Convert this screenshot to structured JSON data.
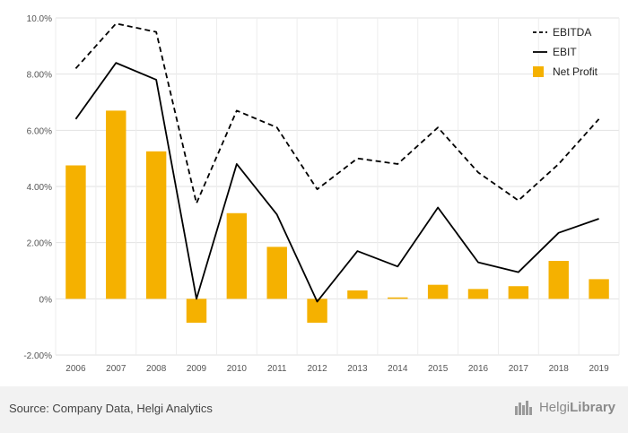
{
  "chart_data": {
    "type": "bar",
    "categories": [
      "2006",
      "2007",
      "2008",
      "2009",
      "2010",
      "2011",
      "2012",
      "2013",
      "2014",
      "2015",
      "2016",
      "2017",
      "2018",
      "2019"
    ],
    "y_tick_labels": [
      "-2.00%",
      "0%",
      "2.00%",
      "4.00%",
      "6.00%",
      "8.00%",
      "10.0%"
    ],
    "y_ticks": [
      -2,
      0,
      2,
      4,
      6,
      8,
      10
    ],
    "ylim": [
      -2,
      10
    ],
    "grid": true,
    "legend_position": "top-right",
    "series": [
      {
        "name": "EBITDA",
        "type": "line",
        "style": "dashed",
        "color": "#000000",
        "values": [
          8.2,
          9.8,
          9.5,
          3.4,
          6.7,
          6.1,
          3.9,
          5.0,
          4.8,
          6.1,
          4.5,
          3.5,
          4.8,
          6.4
        ]
      },
      {
        "name": "EBIT",
        "type": "line",
        "style": "solid",
        "color": "#000000",
        "values": [
          6.4,
          8.4,
          7.8,
          0.0,
          4.8,
          3.0,
          -0.1,
          1.7,
          1.15,
          3.25,
          1.3,
          0.95,
          2.35,
          2.85
        ]
      },
      {
        "name": "Net Profit",
        "type": "bar",
        "color": "#F5B100",
        "values": [
          4.75,
          6.7,
          5.25,
          -0.85,
          3.05,
          1.85,
          -0.85,
          0.3,
          0.05,
          0.5,
          0.35,
          0.45,
          1.35,
          0.7
        ]
      }
    ]
  },
  "footer": {
    "source": "Source: Company Data, Helgi Analytics",
    "logo_light": "Helgi",
    "logo_bold": "Library",
    "logo_mark": "logo-icon"
  }
}
